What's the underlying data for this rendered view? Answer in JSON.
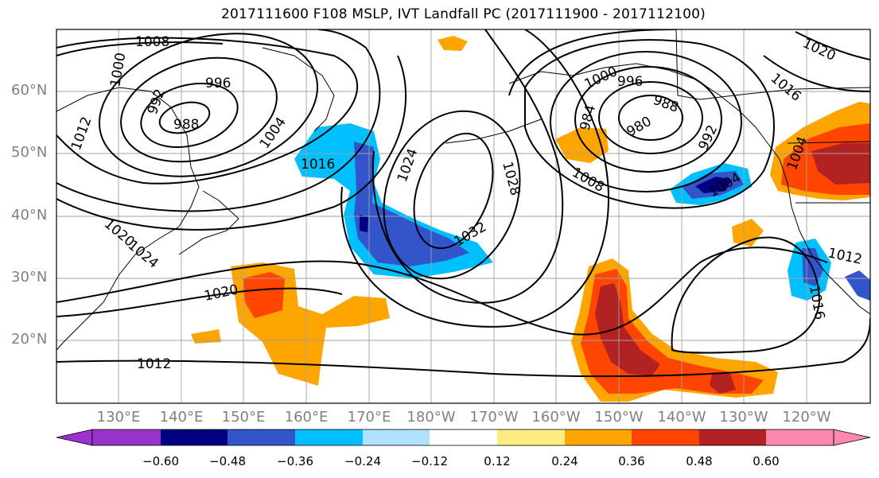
{
  "title": "2017111600 F108 MSLP, IVT Landfall PC (2017111900 - 2017112100)",
  "map": {
    "lat_labels": [
      "60°N",
      "50°N",
      "40°N",
      "30°N",
      "20°N"
    ],
    "lon_labels": [
      "130°E",
      "140°E",
      "150°E",
      "160°E",
      "170°E",
      "180°W",
      "170°W",
      "160°W",
      "150°W",
      "140°W",
      "130°W",
      "120°W"
    ],
    "contour_labels": [
      "1008",
      "1000",
      "996",
      "992",
      "988",
      "1012",
      "1004",
      "1016",
      "1024",
      "1028",
      "1032",
      "1020",
      "1024",
      "1020",
      "1012",
      "1000",
      "996",
      "988",
      "984",
      "980",
      "992",
      "1008",
      "1004",
      "1020",
      "1016",
      "1004",
      "1012",
      "1016"
    ]
  },
  "colorbar": {
    "colors": [
      "#9933cc",
      "#000080",
      "#3355cc",
      "#00bfff",
      "#b0e2ff",
      "#ffffff",
      "#ffec80",
      "#ffa500",
      "#ff4500",
      "#b22222",
      "#ff88b0"
    ],
    "ticks": [
      "−0.60",
      "−0.48",
      "−0.36",
      "−0.24",
      "−0.12",
      "0.12",
      "0.24",
      "0.36",
      "0.48",
      "0.60"
    ]
  }
}
